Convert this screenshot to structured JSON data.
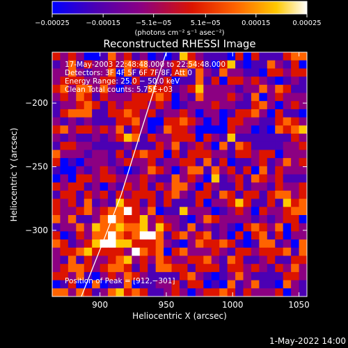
{
  "chart_data": {
    "type": "heatmap",
    "title": "Reconstructed RHESSI Image",
    "xlabel": "Heliocentric X (arcsec)",
    "ylabel": "Heliocentric Y (arcsec)",
    "xlim": [
      864,
      1056
    ],
    "ylim": [
      -352,
      -160
    ],
    "xticks": [
      900,
      950,
      1000,
      1050
    ],
    "yticks": [
      -200,
      -250,
      -300
    ],
    "xtick_labels": [
      "900",
      "950",
      "1000",
      "1050"
    ],
    "ytick_labels": [
      "−200",
      "−250",
      "−300"
    ],
    "colorbar": {
      "range": [
        -0.00025,
        0.00025
      ],
      "ticks": [
        -0.00025,
        -0.00015,
        -5.1e-05,
        5.1e-05,
        0.00015,
        0.00025
      ],
      "tick_labels": [
        "−0.00025",
        "−0.00015",
        "−5.1e−05",
        "5.1e−05",
        "0.00015",
        "0.00025"
      ],
      "unit_label": "(photons cm⁻² s⁻¹ asec⁻²)",
      "colors": [
        "#0000ff",
        "#4b00b4",
        "#8c0082",
        "#dc1400",
        "#ff6400",
        "#ffc800",
        "#ffffff"
      ]
    },
    "annotations": [
      "17‑May‑2003 22:48:48.000 to 22:54:48.000",
      "Detectors: 3F 4F 5F 6F 7F 8F, Att 0",
      "Energy Range: 25.0 − 50.0 keV",
      "Clean     Total counts: 5.75E+03"
    ],
    "peak_label": "Position of Peak = [912,−301]",
    "peak_position": [
      912,
      -301
    ],
    "limb_arc": [
      [
        886,
        -352
      ],
      [
        902,
        -310
      ],
      [
        916,
        -272
      ],
      [
        928,
        -232
      ],
      [
        940,
        -192
      ],
      [
        950,
        -160
      ]
    ],
    "grid": false,
    "legend": "none"
  },
  "footer": {
    "date": "1‑May‑2022 14:00"
  }
}
